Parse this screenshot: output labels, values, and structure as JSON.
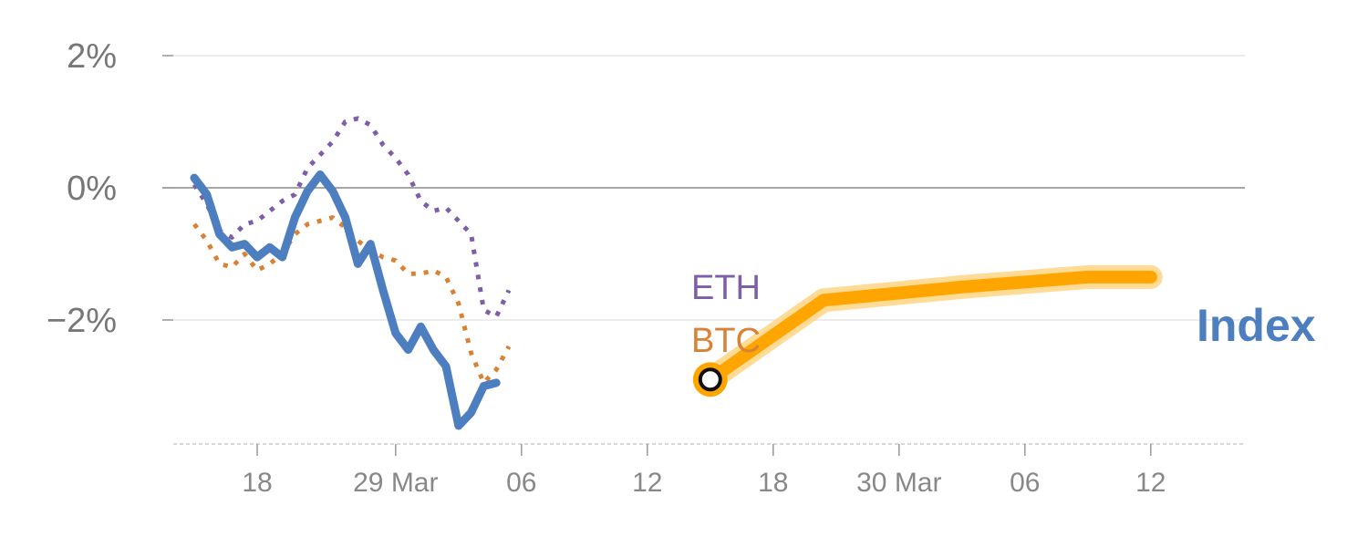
{
  "colors": {
    "index": "#4d7ebf",
    "btc": "#d98236",
    "eth": "#7e5ea8",
    "forecast": "#ffa500",
    "forecast_glow": "#ffd27a",
    "zero_line": "#888888",
    "grid": "#e6e6e6",
    "tick_text": "#777777"
  },
  "chart_data": {
    "type": "line",
    "x_unit": "day",
    "ylabel": "",
    "xlabel": "",
    "ylim": [
      -3.7,
      2.2
    ],
    "y_ticks": [
      {
        "value": 2,
        "label": "2%"
      },
      {
        "value": 0,
        "label": "0%"
      },
      {
        "value": -2,
        "label": "−2%"
      }
    ],
    "x_ticks": [
      {
        "value": 5,
        "label": "18"
      },
      {
        "value": 16,
        "label": "29 Mar"
      },
      {
        "value": 26,
        "label": "06"
      },
      {
        "value": 36,
        "label": "12"
      },
      {
        "value": 46,
        "label": "18"
      },
      {
        "value": 56,
        "label": "30 Mar"
      },
      {
        "value": 66,
        "label": "06"
      },
      {
        "value": 76,
        "label": "12"
      }
    ],
    "grid": "horizontal",
    "legend": "inline-labels",
    "series": [
      {
        "key": "eth",
        "name": "ETH",
        "style": "dotted",
        "points": [
          [
            0,
            0.05
          ],
          [
            1,
            -0.25
          ],
          [
            2,
            -0.65
          ],
          [
            3,
            -0.75
          ],
          [
            4,
            -0.55
          ],
          [
            5,
            -0.5
          ],
          [
            6,
            -0.35
          ],
          [
            7,
            -0.2
          ],
          [
            8,
            -0.1
          ],
          [
            9,
            0.3
          ],
          [
            10,
            0.5
          ],
          [
            11,
            0.7
          ],
          [
            12,
            1.0
          ],
          [
            13,
            1.05
          ],
          [
            14,
            0.95
          ],
          [
            15,
            0.65
          ],
          [
            16,
            0.45
          ],
          [
            17,
            0.2
          ],
          [
            18,
            -0.2
          ],
          [
            19,
            -0.35
          ],
          [
            20,
            -0.3
          ],
          [
            21,
            -0.5
          ],
          [
            22,
            -0.7
          ],
          [
            23,
            -1.85
          ],
          [
            24,
            -1.95
          ],
          [
            25,
            -1.55
          ]
        ]
      },
      {
        "key": "btc",
        "name": "BTC",
        "style": "dotted",
        "points": [
          [
            0,
            -0.55
          ],
          [
            1,
            -0.8
          ],
          [
            2,
            -1.15
          ],
          [
            3,
            -1.2
          ],
          [
            4,
            -1.0
          ],
          [
            5,
            -1.25
          ],
          [
            6,
            -1.15
          ],
          [
            7,
            -1.0
          ],
          [
            8,
            -0.7
          ],
          [
            9,
            -0.55
          ],
          [
            10,
            -0.5
          ],
          [
            11,
            -0.45
          ],
          [
            12,
            -0.6
          ],
          [
            13,
            -0.8
          ],
          [
            14,
            -0.95
          ],
          [
            15,
            -1.05
          ],
          [
            16,
            -1.1
          ],
          [
            17,
            -1.3
          ],
          [
            18,
            -1.3
          ],
          [
            19,
            -1.25
          ],
          [
            20,
            -1.35
          ],
          [
            21,
            -1.75
          ],
          [
            22,
            -2.5
          ],
          [
            23,
            -2.95
          ],
          [
            24,
            -2.75
          ],
          [
            25,
            -2.4
          ]
        ]
      },
      {
        "key": "index",
        "name": "Index",
        "style": "solid",
        "points": [
          [
            0,
            0.15
          ],
          [
            1,
            -0.1
          ],
          [
            2,
            -0.7
          ],
          [
            3,
            -0.9
          ],
          [
            4,
            -0.85
          ],
          [
            5,
            -1.05
          ],
          [
            6,
            -0.9
          ],
          [
            7,
            -1.05
          ],
          [
            8,
            -0.45
          ],
          [
            9,
            -0.05
          ],
          [
            10,
            0.2
          ],
          [
            11,
            -0.05
          ],
          [
            12,
            -0.45
          ],
          [
            13,
            -1.15
          ],
          [
            14,
            -0.85
          ],
          [
            15,
            -1.55
          ],
          [
            16,
            -2.2
          ],
          [
            17,
            -2.45
          ],
          [
            18,
            -2.1
          ],
          [
            19,
            -2.45
          ],
          [
            20,
            -2.7
          ],
          [
            21,
            -3.6
          ],
          [
            22,
            -3.4
          ],
          [
            23,
            -3.0
          ],
          [
            24,
            -2.95
          ]
        ]
      },
      {
        "key": "forecast",
        "name": "",
        "style": "band",
        "points": [
          [
            41,
            -2.9
          ],
          [
            50,
            -1.7
          ],
          [
            61,
            -1.5
          ],
          [
            71,
            -1.35
          ],
          [
            76,
            -1.35
          ]
        ]
      }
    ],
    "marker": {
      "x": 41,
      "y": -2.9
    },
    "labels": {
      "eth": "ETH",
      "btc": "BTC",
      "index": "Index"
    }
  }
}
